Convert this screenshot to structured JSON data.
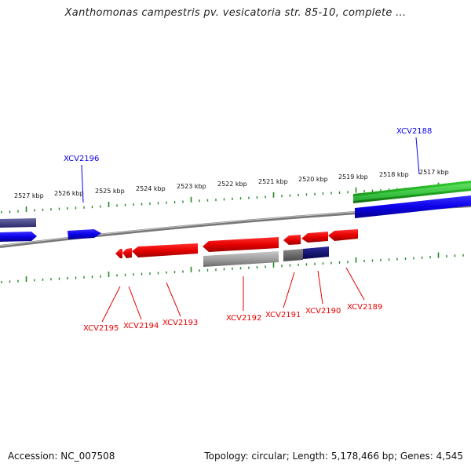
{
  "title": "Xanthomonas campestris pv. vesicatoria str. 85-10, complete ...",
  "footer": {
    "accession": "Accession: NC_007508",
    "summary": "Topology: circular; Length: 5,178,466 bp; Genes: 4,545"
  },
  "colors": {
    "forward": "#0a00e8",
    "forward_dark": "#3a3a7a",
    "reverse": "#e60000",
    "grey": "#9a9a9a",
    "navy": "#0a0a6e",
    "green": "#22aa22",
    "tick": "#228822",
    "backbone": "#808080"
  },
  "ruler_labels": [
    "2527 kbp",
    "2526 kbp",
    "2525 kbp",
    "2524 kbp",
    "2523 kbp",
    "2522 kbp",
    "2521 kbp",
    "2520 kbp",
    "2519 kbp",
    "2518 kbp",
    "2517 kbp"
  ],
  "genes_top": [
    {
      "id": "XCV2196",
      "color": "blue"
    },
    {
      "id": "XCV2188",
      "color": "blue"
    }
  ],
  "genes_bottom": [
    {
      "id": "XCV2195",
      "color": "red"
    },
    {
      "id": "XCV2194",
      "color": "red"
    },
    {
      "id": "XCV2193",
      "color": "red"
    },
    {
      "id": "XCV2192",
      "color": "red"
    },
    {
      "id": "XCV2191",
      "color": "red"
    },
    {
      "id": "XCV2190",
      "color": "red"
    },
    {
      "id": "XCV2189",
      "color": "red"
    }
  ]
}
